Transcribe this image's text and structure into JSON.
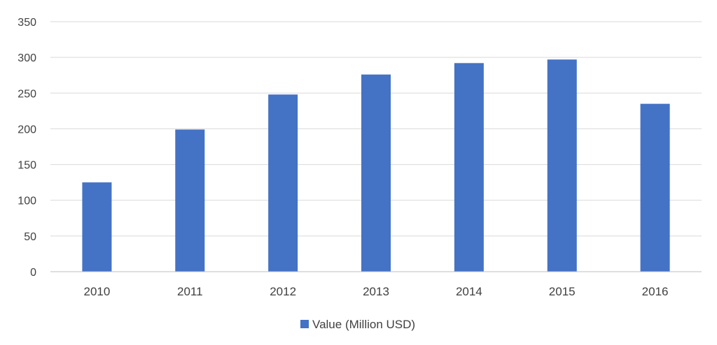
{
  "chart_data": {
    "type": "bar",
    "categories": [
      "2010",
      "2011",
      "2012",
      "2013",
      "2014",
      "2015",
      "2016"
    ],
    "series": [
      {
        "name": "Value (Million USD)",
        "values": [
          125,
          199,
          248,
          276,
          292,
          297,
          235
        ],
        "color": "#4472c4"
      }
    ],
    "title": "",
    "xlabel": "",
    "ylabel": "",
    "ylim": [
      0,
      350
    ],
    "yticks": [
      "0",
      "50",
      "100",
      "150",
      "200",
      "250",
      "300",
      "350"
    ],
    "grid": true,
    "legend": "bottom"
  }
}
